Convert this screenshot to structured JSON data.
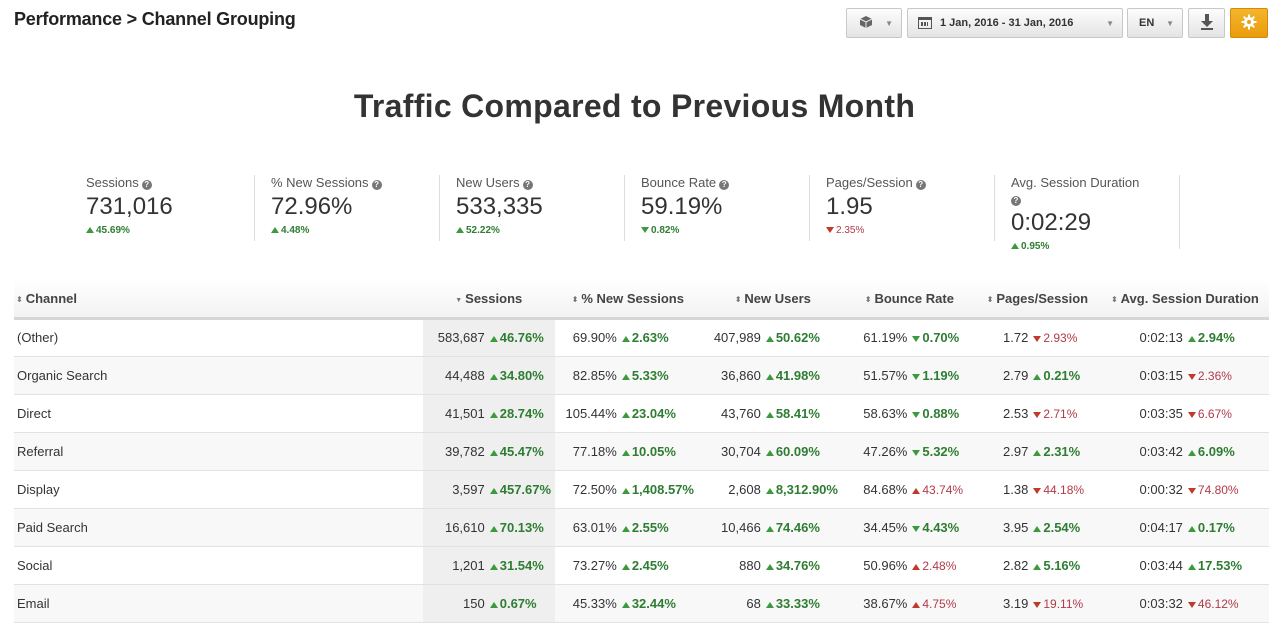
{
  "breadcrumb": "Performance > Channel Grouping",
  "toolbar": {
    "date_range": "1 Jan, 2016 - 31 Jan, 2016",
    "language": "EN",
    "icons": [
      "cube-icon",
      "calendar-icon",
      "download-icon",
      "gear-icon"
    ],
    "gear_color": "#f0a81c"
  },
  "title": "Traffic Compared to Previous Month",
  "kpis": [
    {
      "label": "Sessions",
      "value": "731,016",
      "change": "45.69%",
      "dir": "up"
    },
    {
      "label": "% New Sessions",
      "value": "72.96%",
      "change": "4.48%",
      "dir": "up"
    },
    {
      "label": "New Users",
      "value": "533,335",
      "change": "52.22%",
      "dir": "up"
    },
    {
      "label": "Bounce Rate",
      "value": "59.19%",
      "change": "0.82%",
      "dir": "down-good"
    },
    {
      "label": "Pages/Session",
      "value": "1.95",
      "change": "2.35%",
      "dir": "down-bad"
    },
    {
      "label": "Avg. Session Duration",
      "value": "0:02:29",
      "change": "0.95%",
      "dir": "up"
    }
  ],
  "table": {
    "columns": [
      "Channel",
      "Sessions",
      "% New Sessions",
      "New Users",
      "Bounce Rate",
      "Pages/Session",
      "Avg. Session Duration"
    ],
    "rows": [
      {
        "channel": "(Other)",
        "cells": [
          [
            "583,687",
            "46.76%",
            "ug"
          ],
          [
            "69.90%",
            "2.63%",
            "ug"
          ],
          [
            "407,989",
            "50.62%",
            "ug"
          ],
          [
            "61.19%",
            "0.70%",
            "dg"
          ],
          [
            "1.72",
            "2.93%",
            "dr"
          ],
          [
            "0:02:13",
            "2.94%",
            "ug"
          ]
        ]
      },
      {
        "channel": "Organic Search",
        "cells": [
          [
            "44,488",
            "34.80%",
            "ug"
          ],
          [
            "82.85%",
            "5.33%",
            "ug"
          ],
          [
            "36,860",
            "41.98%",
            "ug"
          ],
          [
            "51.57%",
            "1.19%",
            "dg"
          ],
          [
            "2.79",
            "0.21%",
            "ug"
          ],
          [
            "0:03:15",
            "2.36%",
            "dr"
          ]
        ]
      },
      {
        "channel": "Direct",
        "cells": [
          [
            "41,501",
            "28.74%",
            "ug"
          ],
          [
            "105.44%",
            "23.04%",
            "ug"
          ],
          [
            "43,760",
            "58.41%",
            "ug"
          ],
          [
            "58.63%",
            "0.88%",
            "dg"
          ],
          [
            "2.53",
            "2.71%",
            "dr"
          ],
          [
            "0:03:35",
            "6.67%",
            "dr"
          ]
        ]
      },
      {
        "channel": "Referral",
        "cells": [
          [
            "39,782",
            "45.47%",
            "ug"
          ],
          [
            "77.18%",
            "10.05%",
            "ug"
          ],
          [
            "30,704",
            "60.09%",
            "ug"
          ],
          [
            "47.26%",
            "5.32%",
            "dg"
          ],
          [
            "2.97",
            "2.31%",
            "ug"
          ],
          [
            "0:03:42",
            "6.09%",
            "ug"
          ]
        ]
      },
      {
        "channel": "Display",
        "cells": [
          [
            "3,597",
            "457.67%",
            "ug"
          ],
          [
            "72.50%",
            "1,408.57%",
            "ug"
          ],
          [
            "2,608",
            "8,312.90%",
            "ug"
          ],
          [
            "84.68%",
            "43.74%",
            "ur"
          ],
          [
            "1.38",
            "44.18%",
            "dr"
          ],
          [
            "0:00:32",
            "74.80%",
            "dr"
          ]
        ]
      },
      {
        "channel": "Paid Search",
        "cells": [
          [
            "16,610",
            "70.13%",
            "ug"
          ],
          [
            "63.01%",
            "2.55%",
            "ug"
          ],
          [
            "10,466",
            "74.46%",
            "ug"
          ],
          [
            "34.45%",
            "4.43%",
            "dg"
          ],
          [
            "3.95",
            "2.54%",
            "ug"
          ],
          [
            "0:04:17",
            "0.17%",
            "ug"
          ]
        ]
      },
      {
        "channel": "Social",
        "cells": [
          [
            "1,201",
            "31.54%",
            "ug"
          ],
          [
            "73.27%",
            "2.45%",
            "ug"
          ],
          [
            "880",
            "34.76%",
            "ug"
          ],
          [
            "50.96%",
            "2.48%",
            "ur"
          ],
          [
            "2.82",
            "5.16%",
            "ug"
          ],
          [
            "0:03:44",
            "17.53%",
            "ug"
          ]
        ]
      },
      {
        "channel": "Email",
        "cells": [
          [
            "150",
            "0.67%",
            "ug"
          ],
          [
            "45.33%",
            "32.44%",
            "ug"
          ],
          [
            "68",
            "33.33%",
            "ug"
          ],
          [
            "38.67%",
            "4.75%",
            "ur"
          ],
          [
            "3.19",
            "19.11%",
            "dr"
          ],
          [
            "0:03:32",
            "46.12%",
            "dr"
          ]
        ]
      }
    ]
  }
}
